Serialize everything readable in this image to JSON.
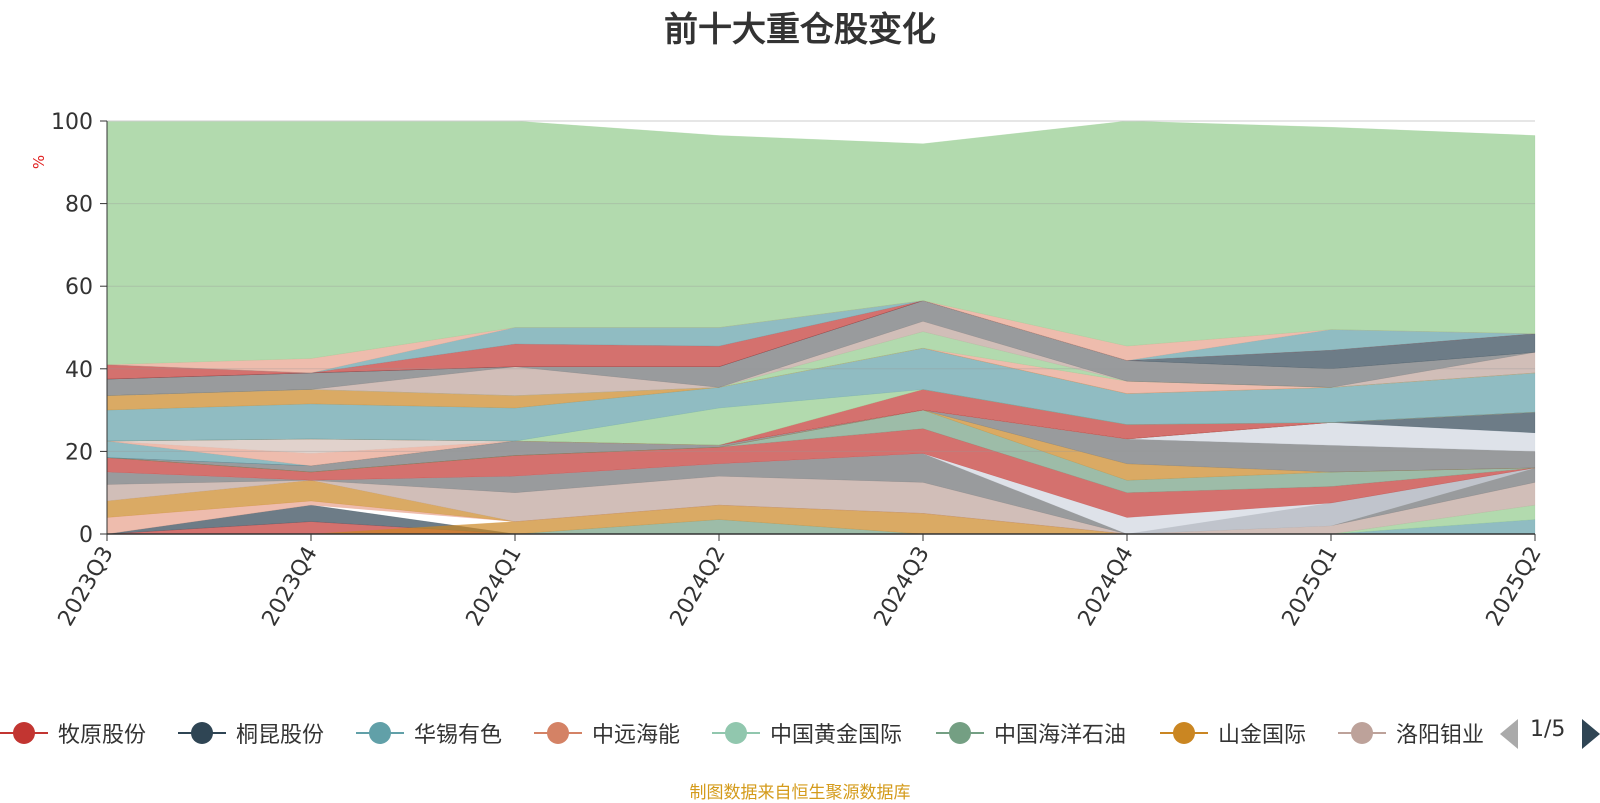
{
  "chart_data": {
    "type": "area",
    "title": "前十大重仓股变化",
    "ylabel": "%",
    "ylim": [
      0,
      100
    ],
    "yticks": [
      0,
      20,
      40,
      60,
      80,
      100
    ],
    "categories": [
      "2023Q3",
      "2023Q4",
      "2024Q1",
      "2024Q2",
      "2024Q3",
      "2024Q4",
      "2025Q1",
      "2025Q2"
    ],
    "grid": true,
    "bands": [
      {
        "color": "#c23531",
        "lower": [
          0,
          0,
          0,
          0,
          0,
          0,
          0,
          0
        ],
        "upper": [
          0,
          3,
          0,
          0,
          0,
          0,
          0,
          0
        ]
      },
      {
        "color": "#2f4554",
        "lower": [
          0,
          3,
          0,
          0,
          0,
          0,
          0,
          0
        ],
        "upper": [
          0,
          7,
          0,
          0,
          0,
          0,
          0,
          0
        ]
      },
      {
        "color": "#61a0a8",
        "lower": [
          0,
          0,
          0,
          0,
          0,
          0,
          0,
          0
        ],
        "upper": [
          0,
          0,
          0,
          0,
          0,
          0,
          0,
          3.5
        ]
      },
      {
        "color": "#91ca8c",
        "lower": [
          0,
          0,
          0,
          0,
          0,
          0,
          0,
          3.5
        ],
        "upper": [
          0,
          0,
          0,
          0,
          0,
          0,
          0,
          7
        ]
      },
      {
        "color": "#749f83",
        "lower": [
          0,
          0,
          0,
          0,
          0,
          0,
          0,
          0
        ],
        "upper": [
          0,
          0,
          0,
          3.5,
          0,
          0,
          0,
          0
        ]
      },
      {
        "color": "#ca8622",
        "lower": [
          0,
          0,
          0,
          3.5,
          0,
          0,
          0,
          0
        ],
        "upper": [
          0,
          0,
          3,
          7,
          5,
          0,
          0,
          0
        ]
      },
      {
        "color": "#bda29a",
        "lower": [
          0,
          0,
          0,
          0,
          0,
          0,
          0,
          7
        ],
        "upper": [
          0,
          0,
          0,
          0,
          0,
          0,
          2,
          12.5
        ]
      },
      {
        "color": "#6e7074",
        "lower": [
          0,
          0,
          0,
          0,
          0,
          0,
          2,
          12.5
        ],
        "upper": [
          0,
          0,
          0,
          0,
          0,
          0,
          7.5,
          16
        ]
      },
      {
        "color": "#e7a08a",
        "lower": [
          0,
          7,
          3,
          7,
          5,
          0,
          0,
          0
        ],
        "upper": [
          4,
          8,
          3,
          7,
          5,
          0,
          0,
          0
        ]
      },
      {
        "color": "#ca8622",
        "lower": [
          4,
          8,
          3,
          7,
          5,
          0,
          0,
          0
        ],
        "upper": [
          8,
          13,
          3,
          7,
          5,
          0,
          0,
          0
        ]
      },
      {
        "color": "#bda29a",
        "lower": [
          8,
          13,
          3,
          7,
          5,
          0,
          0,
          0
        ],
        "upper": [
          12,
          13,
          10,
          14,
          12.5,
          0,
          0,
          0
        ]
      },
      {
        "color": "#6e7074",
        "lower": [
          12,
          13,
          10,
          14,
          12.5,
          0,
          0,
          0
        ],
        "upper": [
          15,
          13,
          14,
          17,
          19.5,
          0,
          0,
          0
        ]
      },
      {
        "color": "#d0d6e0",
        "lower": [
          15,
          13,
          14,
          17,
          19.5,
          0,
          2,
          16
        ],
        "upper": [
          15,
          13,
          14,
          17,
          19.5,
          4,
          7.5,
          16
        ]
      },
      {
        "color": "#c23531",
        "lower": [
          15,
          13,
          14,
          17,
          19.5,
          4,
          7.5,
          16
        ],
        "upper": [
          18.5,
          15,
          19,
          21,
          25.5,
          10,
          11.5,
          16
        ]
      },
      {
        "color": "#749f83",
        "lower": [
          18.5,
          15,
          19,
          21,
          25.5,
          10,
          11.5,
          16
        ],
        "upper": [
          18.5,
          15,
          19,
          21,
          30,
          13,
          15,
          16
        ]
      },
      {
        "color": "#ca8622",
        "lower": [
          18.5,
          15,
          19,
          21,
          30,
          13,
          15,
          16
        ],
        "upper": [
          18.5,
          15,
          19,
          21,
          30,
          17,
          15,
          16
        ]
      },
      {
        "color": "#6e7074",
        "lower": [
          18.5,
          15,
          19,
          21,
          30,
          17,
          15,
          16
        ],
        "upper": [
          18.5,
          16.5,
          22.5,
          21.5,
          30,
          23,
          21.5,
          20
        ]
      },
      {
        "color": "#d0d6e0",
        "lower": [
          18.5,
          16.5,
          22.5,
          21.5,
          30,
          23,
          21.5,
          20
        ],
        "upper": [
          18.5,
          16.5,
          22.5,
          21.5,
          30,
          23,
          27,
          24.5
        ]
      },
      {
        "color": "#2f4554",
        "lower": [
          18.5,
          16.5,
          22.5,
          21.5,
          30,
          23,
          27,
          24.5
        ],
        "upper": [
          18.5,
          16.5,
          22.5,
          21.5,
          30,
          23,
          27,
          29.5
        ]
      },
      {
        "color": "#61a0a8",
        "lower": [
          18.5,
          16.5,
          22.5,
          21.5,
          30,
          23,
          27,
          29.5
        ],
        "upper": [
          22.5,
          16.5,
          22.5,
          21.5,
          30,
          23,
          27,
          29.5
        ]
      },
      {
        "color": "#e7a08a",
        "lower": [
          22.5,
          16.5,
          22.5,
          21.5,
          30,
          23,
          27,
          29.5
        ],
        "upper": [
          22.5,
          19.5,
          22.5,
          21.5,
          30,
          23,
          27,
          29.5
        ]
      },
      {
        "color": "#d4bfb7",
        "lower": [
          22.5,
          19.5,
          22.5,
          21.5,
          30,
          23,
          27,
          29.5
        ],
        "upper": [
          22.5,
          23,
          22.5,
          21.5,
          30,
          23,
          27,
          29.5
        ]
      },
      {
        "color": "#c23531",
        "lower": [
          22.5,
          23,
          22.5,
          21.5,
          30,
          23,
          27,
          29.5
        ],
        "upper": [
          22.5,
          23,
          22.5,
          21.5,
          35,
          26.5,
          27,
          29.5
        ]
      },
      {
        "color": "#91ca8c",
        "lower": [
          22.5,
          23,
          22.5,
          21.5,
          35,
          26.5,
          27,
          29.5
        ],
        "upper": [
          22.5,
          23,
          22.5,
          30.5,
          35,
          26.5,
          27,
          29.5
        ]
      },
      {
        "color": "#61a0a8",
        "lower": [
          22.5,
          23,
          22.5,
          30.5,
          35,
          26.5,
          27,
          29.5
        ],
        "upper": [
          30,
          31.5,
          30.5,
          35.5,
          45,
          34,
          35.5,
          39
        ]
      },
      {
        "color": "#ca8622",
        "lower": [
          30,
          31.5,
          30.5,
          35.5,
          45,
          34,
          35.5,
          39
        ],
        "upper": [
          33.5,
          35,
          33.5,
          35.5,
          45,
          34,
          35.5,
          39
        ]
      },
      {
        "color": "#e7a08a",
        "lower": [
          33.5,
          35,
          33.5,
          35.5,
          45,
          34,
          35.5,
          39
        ],
        "upper": [
          33.5,
          35,
          33.5,
          35.5,
          45,
          37,
          35.5,
          39
        ]
      },
      {
        "color": "#91ca8c",
        "lower": [
          33.5,
          35,
          33.5,
          35.5,
          45,
          37,
          35.5,
          39
        ],
        "upper": [
          33.5,
          35,
          33.5,
          35.5,
          49,
          37,
          35.5,
          39
        ]
      },
      {
        "color": "#bda29a",
        "lower": [
          33.5,
          35,
          33.5,
          35.5,
          49,
          37,
          35.5,
          39
        ],
        "upper": [
          33.5,
          35,
          40.5,
          35.5,
          51.5,
          37,
          35.5,
          44
        ]
      },
      {
        "color": "#6e7074",
        "lower": [
          33.5,
          35,
          40.5,
          35.5,
          51.5,
          37,
          35.5,
          44
        ],
        "upper": [
          37.5,
          39,
          40.5,
          40.5,
          56.5,
          42,
          40,
          44
        ]
      },
      {
        "color": "#2f4554",
        "lower": [
          37.5,
          39,
          40.5,
          40.5,
          56.5,
          42,
          40,
          44
        ],
        "upper": [
          37.5,
          39,
          40.5,
          40.5,
          56.5,
          42,
          44.5,
          48.5
        ]
      },
      {
        "color": "#c23531",
        "lower": [
          37.5,
          39,
          40.5,
          40.5,
          56.5,
          42,
          44.5,
          48.5
        ],
        "upper": [
          41,
          39,
          46,
          45.5,
          56.5,
          42,
          44.5,
          48.5
        ]
      },
      {
        "color": "#61a0a8",
        "lower": [
          41,
          39,
          46,
          45.5,
          56.5,
          42,
          44.5,
          48.5
        ],
        "upper": [
          41,
          39,
          50,
          50,
          56.5,
          42,
          49.5,
          48.5
        ]
      },
      {
        "color": "#e7a08a",
        "lower": [
          41,
          39,
          50,
          50,
          56.5,
          42,
          49.5,
          48.5
        ],
        "upper": [
          41,
          42.5,
          50,
          50,
          56.5,
          45.5,
          49.5,
          48.5
        ]
      },
      {
        "color": "#91ca8c",
        "lower": [
          41,
          42.5,
          50,
          50,
          56.5,
          45.5,
          49.5,
          48.5
        ],
        "upper": [
          100,
          100,
          100,
          96.5,
          94.5,
          100,
          98.5,
          96.5
        ]
      }
    ]
  },
  "legend": {
    "items": [
      {
        "label": "牧原股份",
        "color": "#c23531"
      },
      {
        "label": "桐昆股份",
        "color": "#2f4554"
      },
      {
        "label": "华锡有色",
        "color": "#61a0a8"
      },
      {
        "label": "中远海能",
        "color": "#d48265"
      },
      {
        "label": "中国黄金国际",
        "color": "#91c7ae"
      },
      {
        "label": "中国海洋石油",
        "color": "#749f83"
      },
      {
        "label": "山金国际",
        "color": "#ca8622"
      },
      {
        "label": "洛阳钼业",
        "color": "#bda29a"
      }
    ],
    "page_text": "1/5"
  },
  "source_note": "制图数据来自恒生聚源数据库"
}
